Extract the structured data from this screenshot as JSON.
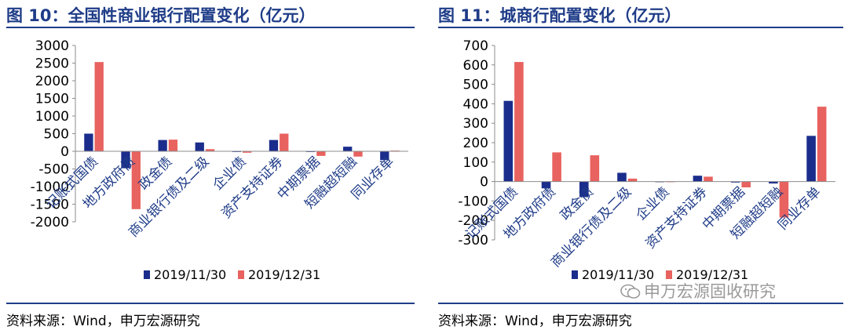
{
  "panels": [
    {
      "title": "图 10：全国性商业银行配置变化（亿元）",
      "source": "资料来源：Wind，申万宏源研究"
    },
    {
      "title": "图 11：城商行配置变化（亿元）",
      "source": "资料来源：Wind，申万宏源研究"
    }
  ],
  "watermark": "申万宏源固收研究",
  "chart_data": [
    {
      "type": "bar",
      "title": "图 10：全国性商业银行配置变化（亿元）",
      "categories": [
        "记账式国债",
        "地方政府债",
        "政金债",
        "商业银行债及二级",
        "企业债",
        "资产支持证券",
        "中期票据",
        "短融超短融",
        "同业存单"
      ],
      "series": [
        {
          "name": "2019/11/30",
          "color": "#1a2d8c",
          "values": [
            500,
            -480,
            320,
            250,
            -20,
            320,
            -20,
            130,
            -250
          ]
        },
        {
          "name": "2019/12/31",
          "color": "#e8625f",
          "values": [
            2530,
            -1640,
            330,
            60,
            -40,
            500,
            -130,
            -150,
            20
          ]
        }
      ],
      "ylim": [
        -2000,
        3000
      ],
      "yticks": [
        -2000,
        -1500,
        -1000,
        -500,
        0,
        500,
        1000,
        1500,
        2000,
        2500,
        3000
      ],
      "legend": "bottom",
      "grid": false
    },
    {
      "type": "bar",
      "title": "图 11：城商行配置变化（亿元）",
      "categories": [
        "记账式国债",
        "地方政府债",
        "政金债",
        "商业银行债及二级",
        "企业债",
        "资产支持证券",
        "中期票据",
        "短融超短融",
        "同业存单"
      ],
      "series": [
        {
          "name": "2019/11/30",
          "color": "#1a2d8c",
          "values": [
            415,
            -35,
            -80,
            45,
            0,
            30,
            -5,
            -10,
            235
          ]
        },
        {
          "name": "2019/12/31",
          "color": "#e8625f",
          "values": [
            615,
            150,
            135,
            15,
            0,
            25,
            -30,
            -185,
            385
          ]
        }
      ],
      "ylim": [
        -300,
        700
      ],
      "yticks": [
        -300,
        -200,
        -100,
        0,
        100,
        200,
        300,
        400,
        500,
        600,
        700
      ],
      "legend": "bottom",
      "grid": false
    }
  ]
}
